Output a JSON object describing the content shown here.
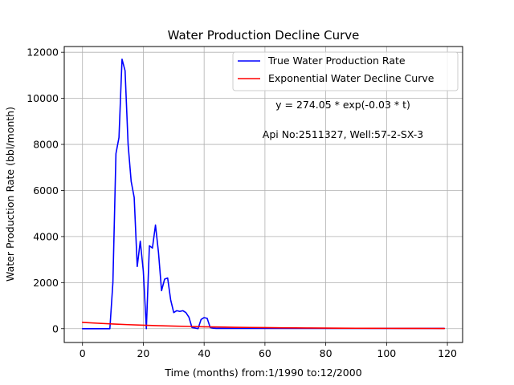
{
  "chart_data": {
    "type": "line",
    "title": "Water Production Decline Curve",
    "xlabel": "Time (months) from:1/1990 to:12/2000",
    "ylabel": "Water Production Rate (bbl/month)",
    "xlim": [
      -6,
      125
    ],
    "ylim": [
      -600,
      12250
    ],
    "xticks": [
      0,
      20,
      40,
      60,
      80,
      100,
      120
    ],
    "yticks": [
      0,
      2000,
      4000,
      6000,
      8000,
      10000,
      12000
    ],
    "grid": true,
    "legend_position": "top-right",
    "annotations": [
      "y = 274.05 * exp(-0.03 * t)",
      "Api No:2511327, Well:57-2-SX-3"
    ],
    "series": [
      {
        "name": "True Water Production Rate",
        "color": "#0000ff",
        "x": [
          0,
          1,
          2,
          3,
          4,
          5,
          6,
          7,
          8,
          9,
          10,
          11,
          12,
          13,
          14,
          15,
          16,
          17,
          18,
          19,
          20,
          21,
          22,
          23,
          24,
          25,
          26,
          27,
          28,
          29,
          30,
          31,
          32,
          33,
          34,
          35,
          36,
          37,
          38,
          39,
          40,
          41,
          42,
          43,
          44,
          45,
          46,
          47,
          48,
          49,
          50,
          55,
          60,
          65,
          70,
          75,
          80,
          85,
          90,
          95,
          100,
          105,
          110,
          115,
          119
        ],
        "y": [
          0,
          0,
          0,
          0,
          0,
          0,
          0,
          0,
          0,
          0,
          2000,
          7600,
          8300,
          11700,
          11200,
          8000,
          6400,
          5700,
          2700,
          3800,
          2500,
          0,
          3600,
          3500,
          4500,
          3300,
          1650,
          2150,
          2200,
          1250,
          700,
          780,
          750,
          780,
          700,
          500,
          50,
          30,
          0,
          400,
          480,
          450,
          50,
          20,
          10,
          10,
          10,
          10,
          10,
          10,
          10,
          10,
          10,
          10,
          10,
          10,
          10,
          10,
          10,
          10,
          10,
          10,
          10,
          10,
          10
        ]
      },
      {
        "name": "Exponential Water Decline Curve",
        "color": "#ff0000",
        "x": [
          0,
          5,
          10,
          15,
          20,
          25,
          30,
          35,
          40,
          45,
          50,
          55,
          60,
          65,
          70,
          75,
          80,
          85,
          90,
          95,
          100,
          105,
          110,
          115,
          119
        ],
        "y": [
          274.05,
          236,
          203,
          175,
          150,
          129,
          111,
          96,
          83,
          71,
          61,
          53,
          45,
          39,
          34,
          29,
          25,
          21,
          18,
          16,
          14,
          12,
          10,
          9,
          8
        ]
      }
    ]
  }
}
